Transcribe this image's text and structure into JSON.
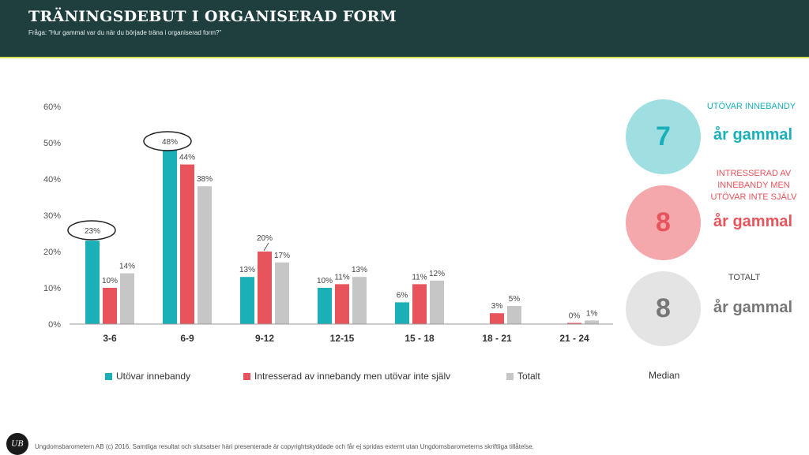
{
  "header": {
    "title": "TRÄNINGSDEBUT I ORGANISERAD FORM",
    "subtitle": "Fråga: ”Hur gammal var du när du började träna i organiserad form?”"
  },
  "colors": {
    "teal": "#1bb0b8",
    "red": "#e8545c",
    "gray": "#c6c6c6",
    "header_bg": "#1e3f3e"
  },
  "chart_data": {
    "type": "bar",
    "categories": [
      "3-6",
      "6-9",
      "9-12",
      "12-15",
      "15 - 18",
      "18 - 21",
      "21 - 24"
    ],
    "series": [
      {
        "name": "Utövar innebandy",
        "values": [
          23,
          48,
          13,
          10,
          6,
          null,
          null
        ],
        "labels": [
          "23%",
          "48%",
          "13%",
          "10%",
          "6%",
          "",
          ""
        ]
      },
      {
        "name": "Intresserad av innebandy men utövar inte själv",
        "values": [
          10,
          44,
          20,
          11,
          11,
          3,
          0
        ],
        "labels": [
          "10%",
          "44%",
          "20%",
          "11%",
          "11%",
          "3%",
          "0%"
        ]
      },
      {
        "name": "Totalt",
        "values": [
          14,
          38,
          17,
          13,
          12,
          5,
          1
        ],
        "labels": [
          "14%",
          "38%",
          "17%",
          "13%",
          "12%",
          "5%",
          "1%"
        ]
      }
    ],
    "ylim": [
      0,
      60
    ],
    "yticks": [
      "0%",
      "10%",
      "20%",
      "30%",
      "40%",
      "50%",
      "60%"
    ],
    "legend_position": "bottom",
    "grid": false
  },
  "median": {
    "label": "Median",
    "panels": [
      {
        "heading": "UTÖVAR INNEBANDY",
        "number": "7",
        "value": "år gammal"
      },
      {
        "heading": "INTRESSERAD AV INNEBANDY MEN UTÖVAR INTE SJÄLV",
        "number": "8",
        "value": "år gammal"
      },
      {
        "heading": "TOTALT",
        "number": "8",
        "value": "år gammal"
      }
    ]
  },
  "footer": {
    "logo_text": "UB",
    "text": "Ungdomsbarometern AB (c) 2016. Samtliga resultat och slutsatser häri presenterade är copyrightskyddade och får ej spridas externt utan Ungdomsbarometerns skriftliga tillåtelse."
  }
}
